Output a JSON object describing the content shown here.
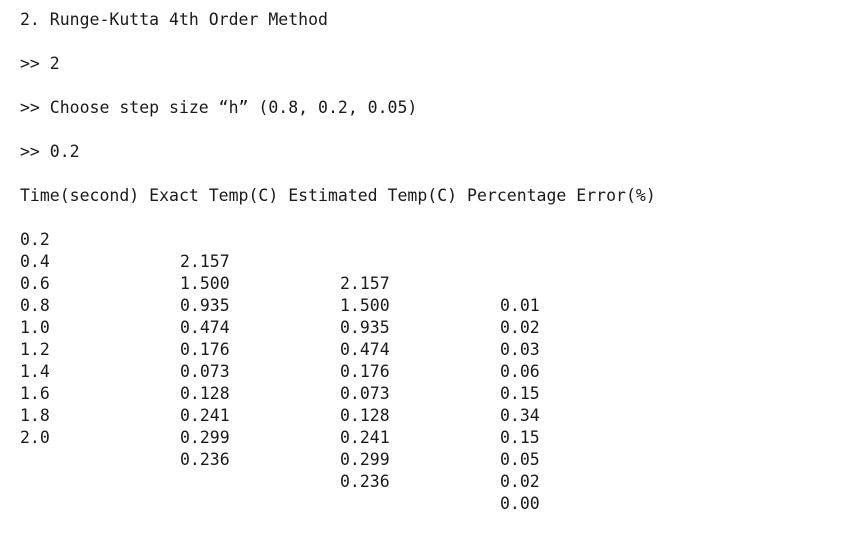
{
  "console": {
    "menu_choice_line": "2. Runge-Kutta 4th Order Method",
    "input_choice": ">> 2",
    "step_prompt": ">> Choose step size “h” (0.8, 0.2, 0.05)",
    "input_step": ">> 0.2",
    "table_header": "Time(second) Exact Temp(C) Estimated Temp(C) Percentage Error(%)",
    "rows": [
      {
        "time": "0.2",
        "exact": "2.157",
        "estimated": "2.157",
        "error": "0.01"
      },
      {
        "time": "0.4",
        "exact": "1.500",
        "estimated": "1.500",
        "error": "0.02"
      },
      {
        "time": "0.6",
        "exact": "0.935",
        "estimated": "0.935",
        "error": "0.03"
      },
      {
        "time": "0.8",
        "exact": "0.474",
        "estimated": "0.474",
        "error": "0.06"
      },
      {
        "time": "1.0",
        "exact": "0.176",
        "estimated": "0.176",
        "error": "0.15"
      },
      {
        "time": "1.2",
        "exact": "0.073",
        "estimated": "0.073",
        "error": "0.34"
      },
      {
        "time": "1.4",
        "exact": "0.128",
        "estimated": "0.128",
        "error": "0.15"
      },
      {
        "time": "1.6",
        "exact": "0.241",
        "estimated": "0.241",
        "error": "0.05"
      },
      {
        "time": "1.8",
        "exact": "0.299",
        "estimated": "0.299",
        "error": "0.02"
      },
      {
        "time": "2.0",
        "exact": "0.236",
        "estimated": "0.236",
        "error": "0.00"
      }
    ]
  }
}
